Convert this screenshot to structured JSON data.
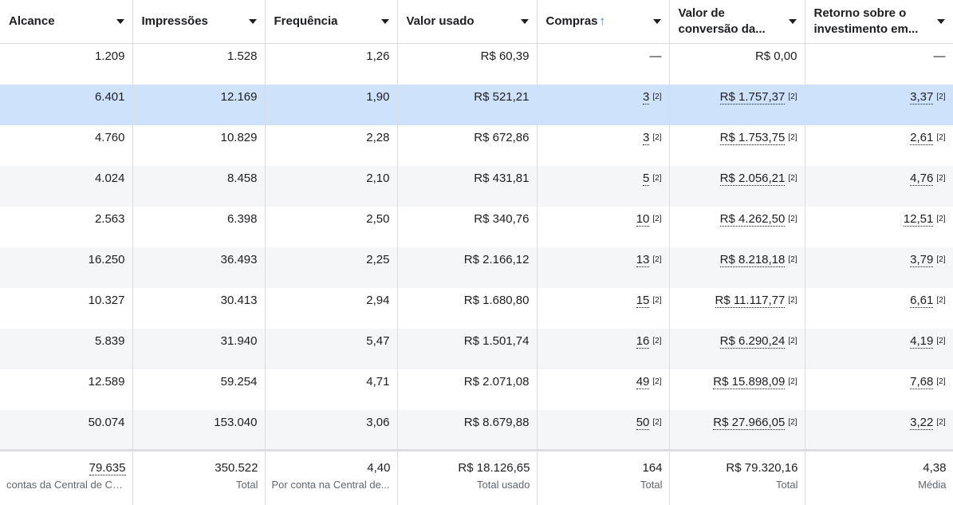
{
  "columns": [
    {
      "label": "Alcance"
    },
    {
      "label": "Impressões"
    },
    {
      "label": "Frequência"
    },
    {
      "label": "Valor usado"
    },
    {
      "label": "Compras",
      "sort_icon": "↑"
    },
    {
      "label": "Valor de conversão da..."
    },
    {
      "label": "Retorno sobre o investimento em..."
    }
  ],
  "rows": [
    {
      "alcance": "1.209",
      "impressoes": "1.528",
      "frequencia": "1,26",
      "valor": "R$ 60,39",
      "compras": "—",
      "compras_fn": "",
      "conversao": "R$ 0,00",
      "conversao_fn": "",
      "retorno": "—",
      "retorno_fn": ""
    },
    {
      "alcance": "6.401",
      "impressoes": "12.169",
      "frequencia": "1,90",
      "valor": "R$ 521,21",
      "compras": "3",
      "compras_fn": "[2]",
      "conversao": "R$ 1.757,37",
      "conversao_fn": "[2]",
      "retorno": "3,37",
      "retorno_fn": "[2]"
    },
    {
      "alcance": "4.760",
      "impressoes": "10.829",
      "frequencia": "2,28",
      "valor": "R$ 672,86",
      "compras": "3",
      "compras_fn": "[2]",
      "conversao": "R$ 1.753,75",
      "conversao_fn": "[2]",
      "retorno": "2,61",
      "retorno_fn": "[2]"
    },
    {
      "alcance": "4.024",
      "impressoes": "8.458",
      "frequencia": "2,10",
      "valor": "R$ 431,81",
      "compras": "5",
      "compras_fn": "[2]",
      "conversao": "R$ 2.056,21",
      "conversao_fn": "[2]",
      "retorno": "4,76",
      "retorno_fn": "[2]"
    },
    {
      "alcance": "2.563",
      "impressoes": "6.398",
      "frequencia": "2,50",
      "valor": "R$ 340,76",
      "compras": "10",
      "compras_fn": "[2]",
      "conversao": "R$ 4.262,50",
      "conversao_fn": "[2]",
      "retorno": "12,51",
      "retorno_fn": "[2]"
    },
    {
      "alcance": "16.250",
      "impressoes": "36.493",
      "frequencia": "2,25",
      "valor": "R$ 2.166,12",
      "compras": "13",
      "compras_fn": "[2]",
      "conversao": "R$ 8.218,18",
      "conversao_fn": "[2]",
      "retorno": "3,79",
      "retorno_fn": "[2]"
    },
    {
      "alcance": "10.327",
      "impressoes": "30.413",
      "frequencia": "2,94",
      "valor": "R$ 1.680,80",
      "compras": "15",
      "compras_fn": "[2]",
      "conversao": "R$ 11.117,77",
      "conversao_fn": "[2]",
      "retorno": "6,61",
      "retorno_fn": "[2]"
    },
    {
      "alcance": "5.839",
      "impressoes": "31.940",
      "frequencia": "5,47",
      "valor": "R$ 1.501,74",
      "compras": "16",
      "compras_fn": "[2]",
      "conversao": "R$ 6.290,24",
      "conversao_fn": "[2]",
      "retorno": "4,19",
      "retorno_fn": "[2]"
    },
    {
      "alcance": "12.589",
      "impressoes": "59.254",
      "frequencia": "4,71",
      "valor": "R$ 2.071,08",
      "compras": "49",
      "compras_fn": "[2]",
      "conversao": "R$ 15.898,09",
      "conversao_fn": "[2]",
      "retorno": "7,68",
      "retorno_fn": "[2]"
    },
    {
      "alcance": "50.074",
      "impressoes": "153.040",
      "frequencia": "3,06",
      "valor": "R$ 8.679,88",
      "compras": "50",
      "compras_fn": "[2]",
      "conversao": "R$ 27.966,05",
      "conversao_fn": "[2]",
      "retorno": "3,22",
      "retorno_fn": "[2]"
    }
  ],
  "selected_row_index": 1,
  "totals": [
    {
      "value": "79.635",
      "label": "contas da Central de Co..."
    },
    {
      "value": "350.522",
      "label": "Total"
    },
    {
      "value": "4,40",
      "label": "Por conta na Central de..."
    },
    {
      "value": "R$ 18.126,65",
      "label": "Total usado"
    },
    {
      "value": "164",
      "label": "Total"
    },
    {
      "value": "R$ 79.320,16",
      "label": "Total"
    },
    {
      "value": "4,38",
      "label": "Média"
    }
  ],
  "colors": {
    "selected_row": "#cfe2fb",
    "alt_row": "#f5f6f7",
    "accent": "#1877f2"
  }
}
